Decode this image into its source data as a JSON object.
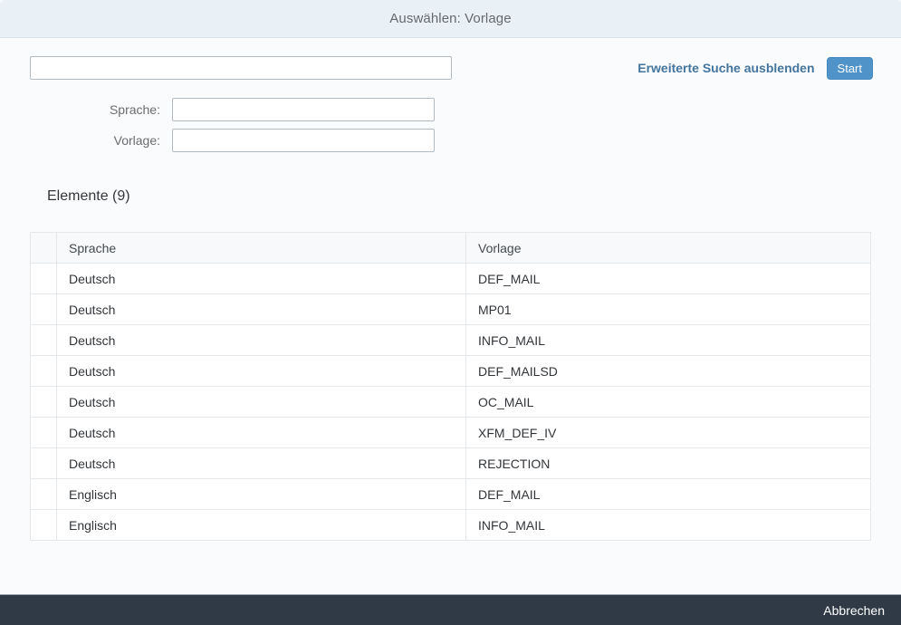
{
  "dialog": {
    "title": "Auswählen: Vorlage"
  },
  "search": {
    "value": "",
    "advanced_toggle_label": "Erweiterte Suche ausblenden",
    "start_button_label": "Start"
  },
  "filters": [
    {
      "label": "Sprache:",
      "value": ""
    },
    {
      "label": "Vorlage:",
      "value": ""
    }
  ],
  "results": {
    "title": "Elemente (9)",
    "columns": [
      "Sprache",
      "Vorlage"
    ],
    "rows": [
      [
        "Deutsch",
        "DEF_MAIL"
      ],
      [
        "Deutsch",
        "MP01"
      ],
      [
        "Deutsch",
        "INFO_MAIL"
      ],
      [
        "Deutsch",
        "DEF_MAILSD"
      ],
      [
        "Deutsch",
        "OC_MAIL"
      ],
      [
        "Deutsch",
        "XFM_DEF_IV"
      ],
      [
        "Deutsch",
        "REJECTION"
      ],
      [
        "Englisch",
        "DEF_MAIL"
      ],
      [
        "Englisch",
        "INFO_MAIL"
      ]
    ]
  },
  "footer": {
    "cancel_label": "Abbrechen"
  },
  "colors": {
    "accent": "#4f93c9",
    "link": "#44759f",
    "header_bg": "#eaf1f6",
    "footer_bg": "#2f3a46",
    "content_bg": "#fafbfc"
  }
}
